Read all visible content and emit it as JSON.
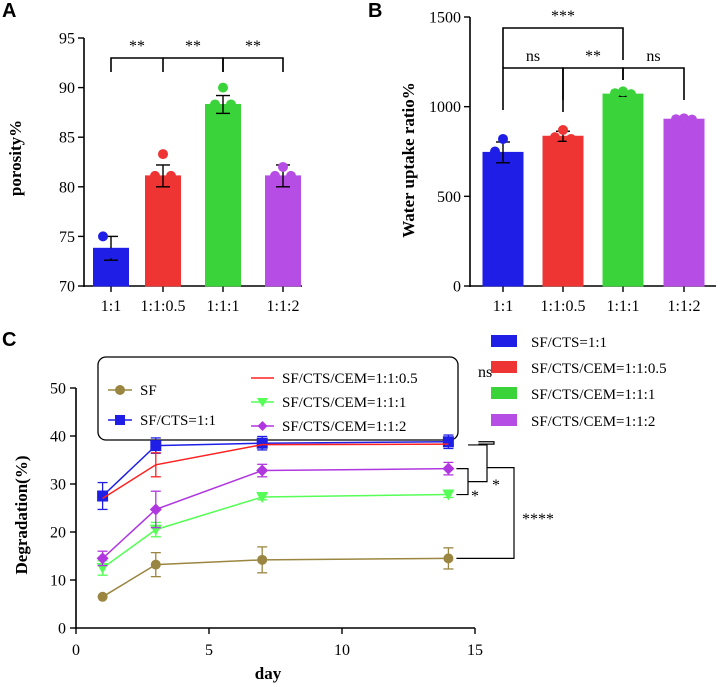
{
  "colors": {
    "blue": "#1e1ee6",
    "red": "#ef3434",
    "green": "#3ad43a",
    "purple": "#b64ee6",
    "olive": "#9a8640",
    "redline": "#ff2020",
    "greenline": "#55ff55",
    "purpleline": "#b037e0",
    "axis": "#000000"
  },
  "chart_data": [
    {
      "panel": "A",
      "type": "bar",
      "ylabel": "porosity%",
      "ylim": [
        70,
        95
      ],
      "yticks": [
        70,
        75,
        80,
        85,
        90,
        95
      ],
      "categories": [
        "1:1",
        "1:1:0.5",
        "1:1:1",
        "1:1:2"
      ],
      "values": [
        73.8,
        81.1,
        88.3,
        81.1
      ],
      "errors": [
        1.2,
        1.1,
        0.9,
        1.1
      ],
      "points": [
        [
          73.3,
          75.0,
          73.3
        ],
        [
          83.3,
          81.1,
          81.1
        ],
        [
          90.0,
          88.3,
          88.3
        ],
        [
          82.0,
          81.1,
          81.1
        ]
      ],
      "color_keys": [
        "blue",
        "red",
        "green",
        "purple"
      ],
      "significance": [
        {
          "from": 0,
          "to": 1,
          "label": "**"
        },
        {
          "from": 1,
          "to": 2,
          "label": "**"
        },
        {
          "from": 2,
          "to": 3,
          "label": "**"
        }
      ]
    },
    {
      "panel": "B",
      "type": "bar",
      "ylabel": "Water uptake  ratio%",
      "ylim": [
        0,
        1500
      ],
      "yticks": [
        0,
        500,
        1000,
        1500
      ],
      "categories": [
        "1:1",
        "1:1:0.5",
        "1:1:1",
        "1:1:2"
      ],
      "values": [
        745,
        835,
        1070,
        930
      ],
      "errors": [
        58,
        28,
        12,
        10
      ],
      "points": [
        [
          820,
          750,
          640
        ],
        [
          870,
          830,
          820
        ],
        [
          1085,
          1075,
          1070
        ],
        [
          935,
          930,
          928
        ]
      ],
      "color_keys": [
        "blue",
        "red",
        "green",
        "purple"
      ],
      "significance": [
        {
          "from": 0,
          "to": 2,
          "label": "***"
        },
        {
          "from": 0,
          "to": 1,
          "label": "ns"
        },
        {
          "from": 1,
          "to": 2,
          "label": "**"
        },
        {
          "from": 2,
          "to": 3,
          "label": "ns"
        }
      ],
      "legend": [
        {
          "label": "SF/CTS=1:1",
          "color_key": "blue"
        },
        {
          "label": "SF/CTS/CEM=1:1:0.5",
          "color_key": "red"
        },
        {
          "label": "SF/CTS/CEM=1:1:1",
          "color_key": "green"
        },
        {
          "label": "SF/CTS/CEM=1:1:2",
          "color_key": "purple"
        }
      ]
    },
    {
      "panel": "C",
      "type": "line",
      "xlabel": "day",
      "ylabel": "Degradation(%)",
      "xlim": [
        0,
        15
      ],
      "ylim": [
        0,
        50
      ],
      "xticks": [
        0,
        5,
        10,
        15
      ],
      "yticks": [
        0,
        10,
        20,
        30,
        40,
        50
      ],
      "x": [
        1,
        3,
        7,
        14
      ],
      "series": [
        {
          "name": "SF",
          "values": [
            6.5,
            13.2,
            14.2,
            14.5
          ],
          "errors": [
            0,
            2.5,
            2.7,
            2.2
          ],
          "color_key": "olive",
          "marker": "circle"
        },
        {
          "name": "SF/CTS=1:1",
          "values": [
            27.5,
            38.0,
            38.5,
            38.8
          ],
          "errors": [
            2.8,
            1.6,
            1.4,
            1.4
          ],
          "color_key": "blue",
          "marker": "square"
        },
        {
          "name": "SF/CTS/CEM=1:1:0.5",
          "values": [
            27.0,
            34.0,
            38.2,
            38.3
          ],
          "errors": [
            0,
            2.5,
            0,
            0
          ],
          "color_key": "redline",
          "marker": "none"
        },
        {
          "name": "SF/CTS/CEM=1:1:1",
          "values": [
            12.5,
            20.5,
            27.3,
            27.8
          ],
          "errors": [
            1.5,
            1.5,
            0.6,
            0.6
          ],
          "color_key": "greenline",
          "marker": "triangle-down"
        },
        {
          "name": "SF/CTS/CEM=1:1:2",
          "values": [
            14.5,
            24.7,
            32.8,
            33.2
          ],
          "errors": [
            1.5,
            3.8,
            1.3,
            1.3
          ],
          "color_key": "purpleline",
          "marker": "diamond"
        }
      ],
      "significance": [
        {
          "label": "ns"
        },
        {
          "label": "*"
        },
        {
          "label": "*"
        },
        {
          "label": "****"
        }
      ]
    }
  ]
}
